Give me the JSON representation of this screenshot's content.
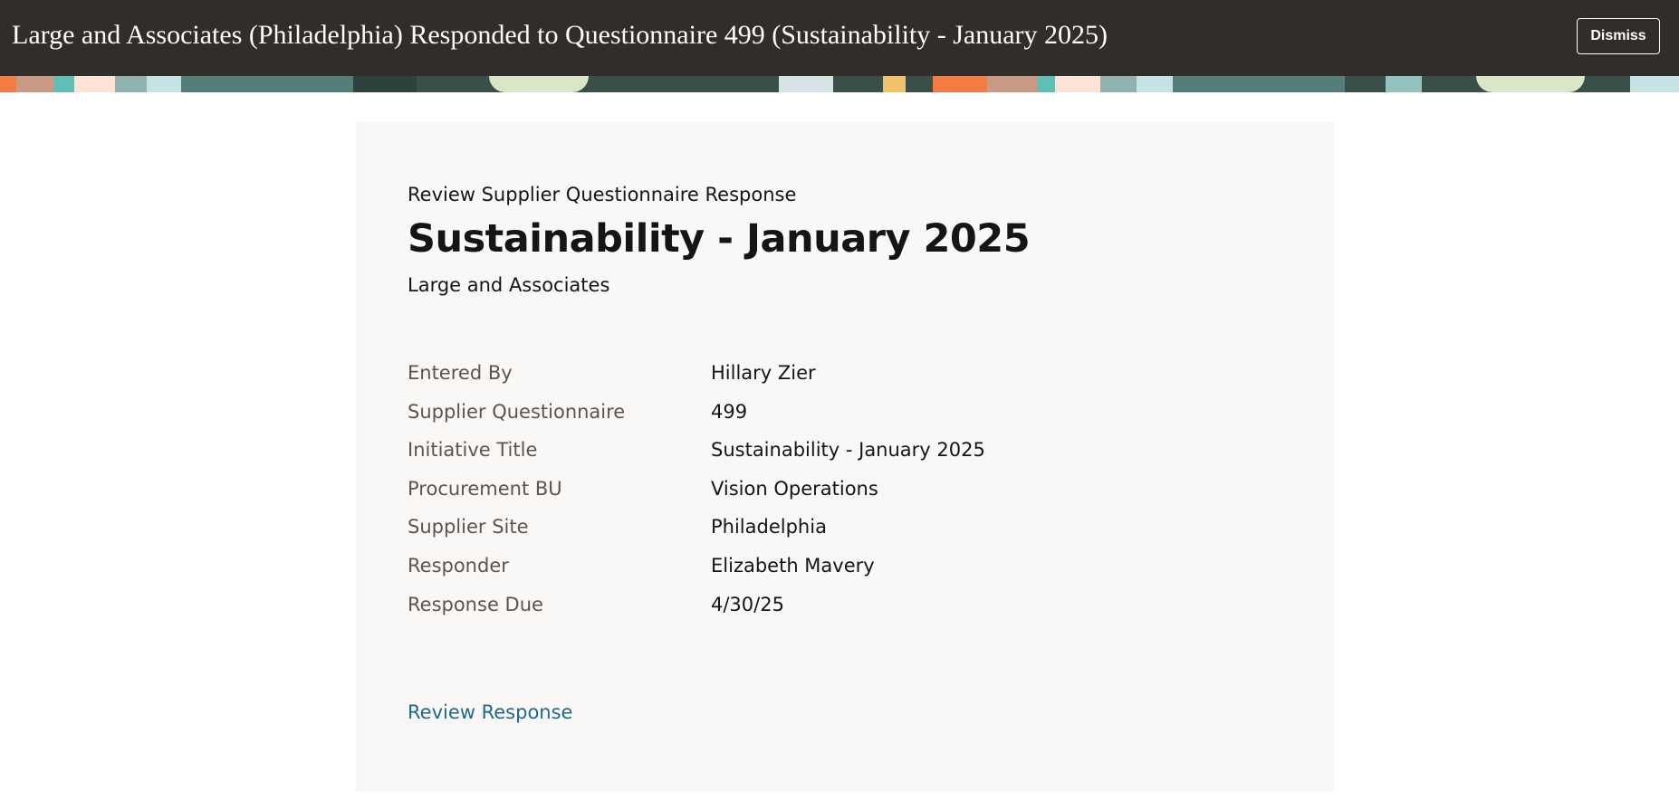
{
  "notification": {
    "title": "Large and Associates (Philadelphia) Responded to Questionnaire 499 (Sustainability - January 2025)",
    "dismiss_label": "Dismiss"
  },
  "card": {
    "eyebrow": "Review Supplier Questionnaire Response",
    "heading": "Sustainability - January 2025",
    "supplier": "Large and Associates",
    "details": [
      {
        "label": "Entered By",
        "value": "Hillary Zier"
      },
      {
        "label": "Supplier Questionnaire",
        "value": "499"
      },
      {
        "label": "Initiative Title",
        "value": "Sustainability - January 2025"
      },
      {
        "label": "Procurement BU",
        "value": "Vision Operations"
      },
      {
        "label": "Supplier Site",
        "value": "Philadelphia"
      },
      {
        "label": "Responder",
        "value": "Elizabeth Mavery"
      },
      {
        "label": "Response Due",
        "value": "4/30/25"
      }
    ],
    "link_label": "Review Response"
  },
  "colors": {
    "header_bg": "#312d2a",
    "card_bg": "#f9f8f7",
    "link": "#1d6a8c"
  }
}
